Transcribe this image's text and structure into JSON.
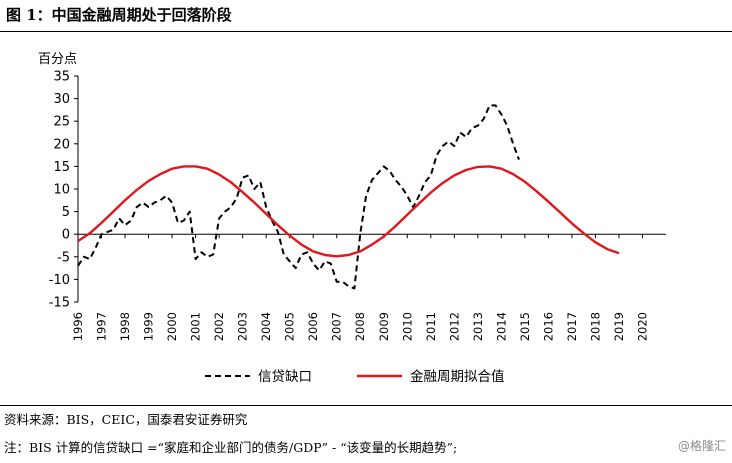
{
  "figure": {
    "title": "图 1：中国金融周期处于回落阶段",
    "source": "资料来源：BIS，CEIC，国泰君安证券研究",
    "note": "注：BIS 计算的信贷缺口 =“家庭和企业部门的债务/GDP” - “该变量的长期趋势”;",
    "watermark": "@格隆汇"
  },
  "chart_data": {
    "type": "line",
    "ylabel": "百分点",
    "ylim": [
      -15,
      35
    ],
    "yticks": [
      -15,
      -10,
      -5,
      0,
      5,
      10,
      15,
      20,
      25,
      30,
      35
    ],
    "xlim": [
      1996,
      2021
    ],
    "xticks": [
      "1996",
      "1997",
      "1998",
      "1999",
      "2000",
      "2001",
      "2002",
      "2003",
      "2004",
      "2005",
      "2006",
      "2007",
      "2008",
      "2009",
      "2010",
      "2011",
      "2012",
      "2013",
      "2014",
      "2015",
      "2016",
      "2017",
      "2018",
      "2019",
      "2020"
    ],
    "grid": false,
    "legend_position": "bottom",
    "series": [
      {
        "name": "信贷缺口",
        "color": "#000000",
        "style": "dashed",
        "points": [
          [
            1996.0,
            -7.0
          ],
          [
            1996.25,
            -5.0
          ],
          [
            1996.5,
            -5.5
          ],
          [
            1996.75,
            -3.0
          ],
          [
            1997.0,
            0.0
          ],
          [
            1997.25,
            0.5
          ],
          [
            1997.5,
            1.0
          ],
          [
            1997.75,
            3.5
          ],
          [
            1998.0,
            2.0
          ],
          [
            1998.25,
            3.0
          ],
          [
            1998.5,
            6.0
          ],
          [
            1998.75,
            7.0
          ],
          [
            1999.0,
            6.0
          ],
          [
            1999.25,
            7.0
          ],
          [
            1999.5,
            7.5
          ],
          [
            1999.75,
            8.5
          ],
          [
            2000.0,
            7.0
          ],
          [
            2000.25,
            2.5
          ],
          [
            2000.5,
            3.0
          ],
          [
            2000.75,
            5.0
          ],
          [
            2001.0,
            -5.5
          ],
          [
            2001.25,
            -4.0
          ],
          [
            2001.5,
            -5.0
          ],
          [
            2001.75,
            -4.5
          ],
          [
            2002.0,
            3.5
          ],
          [
            2002.25,
            5.0
          ],
          [
            2002.5,
            6.0
          ],
          [
            2002.75,
            8.0
          ],
          [
            2003.0,
            12.5
          ],
          [
            2003.25,
            13.0
          ],
          [
            2003.5,
            10.0
          ],
          [
            2003.75,
            11.5
          ],
          [
            2004.0,
            6.0
          ],
          [
            2004.25,
            3.0
          ],
          [
            2004.5,
            0.5
          ],
          [
            2004.75,
            -4.5
          ],
          [
            2005.0,
            -6.0
          ],
          [
            2005.25,
            -7.5
          ],
          [
            2005.5,
            -4.5
          ],
          [
            2005.75,
            -4.0
          ],
          [
            2006.0,
            -6.5
          ],
          [
            2006.25,
            -8.0
          ],
          [
            2006.5,
            -6.0
          ],
          [
            2006.75,
            -6.5
          ],
          [
            2007.0,
            -10.5
          ],
          [
            2007.25,
            -10.5
          ],
          [
            2007.5,
            -11.5
          ],
          [
            2007.75,
            -12.0
          ],
          [
            2008.0,
            0.0
          ],
          [
            2008.25,
            8.5
          ],
          [
            2008.5,
            12.0
          ],
          [
            2008.75,
            13.5
          ],
          [
            2009.0,
            15.0
          ],
          [
            2009.25,
            14.0
          ],
          [
            2009.5,
            12.0
          ],
          [
            2009.75,
            10.5
          ],
          [
            2010.0,
            8.5
          ],
          [
            2010.25,
            6.0
          ],
          [
            2010.5,
            8.5
          ],
          [
            2010.75,
            11.5
          ],
          [
            2011.0,
            13.0
          ],
          [
            2011.25,
            17.5
          ],
          [
            2011.5,
            19.5
          ],
          [
            2011.75,
            20.5
          ],
          [
            2012.0,
            19.5
          ],
          [
            2012.25,
            22.5
          ],
          [
            2012.5,
            21.5
          ],
          [
            2012.75,
            23.5
          ],
          [
            2013.0,
            24.0
          ],
          [
            2013.25,
            25.5
          ],
          [
            2013.5,
            28.5
          ],
          [
            2013.75,
            28.5
          ],
          [
            2014.0,
            26.5
          ],
          [
            2014.25,
            24.0
          ],
          [
            2014.5,
            20.0
          ],
          [
            2014.75,
            16.5
          ]
        ]
      },
      {
        "name": "金融周期拟合值",
        "color": "#e0171c",
        "style": "solid",
        "points": [
          [
            1996.0,
            -1.5
          ],
          [
            1996.5,
            0.2
          ],
          [
            1997.0,
            2.5
          ],
          [
            1997.5,
            5.0
          ],
          [
            1998.0,
            7.5
          ],
          [
            1998.5,
            9.8
          ],
          [
            1999.0,
            11.8
          ],
          [
            1999.5,
            13.3
          ],
          [
            2000.0,
            14.5
          ],
          [
            2000.5,
            15.0
          ],
          [
            2001.0,
            15.0
          ],
          [
            2001.5,
            14.5
          ],
          [
            2002.0,
            13.2
          ],
          [
            2002.5,
            11.5
          ],
          [
            2003.0,
            9.3
          ],
          [
            2003.5,
            7.0
          ],
          [
            2004.0,
            4.5
          ],
          [
            2004.5,
            2.0
          ],
          [
            2005.0,
            -0.3
          ],
          [
            2005.5,
            -2.3
          ],
          [
            2006.0,
            -3.8
          ],
          [
            2006.5,
            -4.6
          ],
          [
            2007.0,
            -4.9
          ],
          [
            2007.5,
            -4.6
          ],
          [
            2008.0,
            -3.8
          ],
          [
            2008.5,
            -2.3
          ],
          [
            2009.0,
            -0.5
          ],
          [
            2009.5,
            1.8
          ],
          [
            2010.0,
            4.3
          ],
          [
            2010.5,
            6.8
          ],
          [
            2011.0,
            9.2
          ],
          [
            2011.5,
            11.3
          ],
          [
            2012.0,
            13.0
          ],
          [
            2012.5,
            14.2
          ],
          [
            2013.0,
            14.9
          ],
          [
            2013.5,
            15.0
          ],
          [
            2014.0,
            14.5
          ],
          [
            2014.5,
            13.3
          ],
          [
            2015.0,
            11.6
          ],
          [
            2015.5,
            9.5
          ],
          [
            2016.0,
            7.2
          ],
          [
            2016.5,
            4.8
          ],
          [
            2017.0,
            2.4
          ],
          [
            2017.5,
            0.2
          ],
          [
            2018.0,
            -1.8
          ],
          [
            2018.5,
            -3.3
          ],
          [
            2019.0,
            -4.2
          ]
        ]
      }
    ]
  }
}
